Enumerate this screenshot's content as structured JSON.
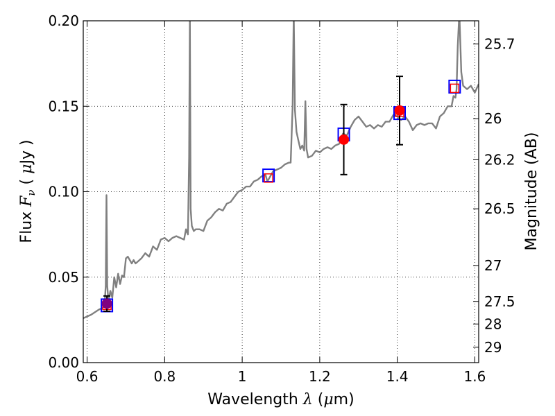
{
  "chart_data": {
    "type": "line",
    "title": "",
    "xlabel": "Wavelength",
    "xlabel_symbol": "λ",
    "xlabel_unit_open": "(",
    "xlabel_unit_mu": "μ",
    "xlabel_unit_rest": "m)",
    "ylabel": "Flux",
    "ylabel_symbol": "F",
    "ylabel_symbol_sub": "ν",
    "ylabel_unit_open": "(",
    "ylabel_unit_mu": "μ",
    "ylabel_unit_rest": "Jy )",
    "y2label": "Magnitude (AB)",
    "xlim": [
      0.59,
      1.61
    ],
    "ylim": [
      0.0,
      0.2
    ],
    "grid": true,
    "x_ticks": [
      0.6,
      0.8,
      1.0,
      1.2,
      1.4,
      1.6
    ],
    "x_tick_labels": [
      "0.6",
      "0.8",
      "1",
      "1.2",
      "1.4",
      "1.6"
    ],
    "y_ticks": [
      0.0,
      0.05,
      0.1,
      0.15,
      0.2
    ],
    "y_tick_labels": [
      "0.00",
      "0.05",
      "0.10",
      "0.15",
      "0.20"
    ],
    "y2_ticks": [
      {
        "label": "25.7",
        "flux": 0.1865
      },
      {
        "label": "26",
        "flux": 0.1427
      },
      {
        "label": "26.2",
        "flux": 0.1187
      },
      {
        "label": "26.5",
        "flux": 0.09
      },
      {
        "label": "27",
        "flux": 0.0568
      },
      {
        "label": "27.5",
        "flux": 0.0358
      },
      {
        "label": "28",
        "flux": 0.0226
      },
      {
        "label": "29",
        "flux": 0.009
      }
    ],
    "series": [
      {
        "style": "spectrum-line",
        "color": "#808080",
        "x": [
          0.59,
          0.61,
          0.63,
          0.64,
          0.645,
          0.648,
          0.65,
          0.652,
          0.655,
          0.66,
          0.665,
          0.67,
          0.675,
          0.68,
          0.685,
          0.69,
          0.695,
          0.7,
          0.705,
          0.71,
          0.715,
          0.72,
          0.725,
          0.73,
          0.74,
          0.75,
          0.76,
          0.77,
          0.78,
          0.79,
          0.8,
          0.81,
          0.82,
          0.83,
          0.84,
          0.85,
          0.855,
          0.86,
          0.863,
          0.865,
          0.867,
          0.87,
          0.875,
          0.88,
          0.89,
          0.9,
          0.91,
          0.92,
          0.93,
          0.94,
          0.95,
          0.96,
          0.97,
          0.98,
          0.99,
          1.0,
          1.01,
          1.02,
          1.03,
          1.04,
          1.05,
          1.06,
          1.065,
          1.07,
          1.08,
          1.09,
          1.1,
          1.11,
          1.12,
          1.125,
          1.13,
          1.133,
          1.136,
          1.14,
          1.145,
          1.15,
          1.155,
          1.16,
          1.163,
          1.166,
          1.17,
          1.18,
          1.19,
          1.2,
          1.21,
          1.22,
          1.23,
          1.24,
          1.25,
          1.26,
          1.27,
          1.28,
          1.29,
          1.3,
          1.31,
          1.32,
          1.33,
          1.34,
          1.35,
          1.36,
          1.37,
          1.38,
          1.39,
          1.4,
          1.41,
          1.42,
          1.43,
          1.44,
          1.45,
          1.46,
          1.47,
          1.48,
          1.49,
          1.5,
          1.51,
          1.52,
          1.53,
          1.54,
          1.545,
          1.55,
          1.553,
          1.556,
          1.56,
          1.565,
          1.57,
          1.58,
          1.59,
          1.6,
          1.61
        ],
        "y": [
          0.026,
          0.028,
          0.031,
          0.032,
          0.033,
          0.045,
          0.098,
          0.045,
          0.036,
          0.042,
          0.038,
          0.05,
          0.044,
          0.052,
          0.046,
          0.051,
          0.05,
          0.061,
          0.062,
          0.06,
          0.058,
          0.06,
          0.058,
          0.059,
          0.061,
          0.064,
          0.062,
          0.068,
          0.066,
          0.072,
          0.073,
          0.071,
          0.073,
          0.074,
          0.073,
          0.072,
          0.078,
          0.075,
          0.12,
          0.205,
          0.09,
          0.08,
          0.077,
          0.078,
          0.078,
          0.077,
          0.083,
          0.085,
          0.088,
          0.09,
          0.089,
          0.093,
          0.094,
          0.097,
          0.1,
          0.101,
          0.103,
          0.103,
          0.106,
          0.107,
          0.109,
          0.11,
          0.106,
          0.108,
          0.112,
          0.113,
          0.114,
          0.116,
          0.117,
          0.117,
          0.15,
          0.205,
          0.148,
          0.135,
          0.13,
          0.125,
          0.127,
          0.124,
          0.153,
          0.125,
          0.12,
          0.121,
          0.124,
          0.123,
          0.125,
          0.126,
          0.125,
          0.127,
          0.128,
          0.134,
          0.133,
          0.138,
          0.142,
          0.144,
          0.141,
          0.138,
          0.139,
          0.137,
          0.139,
          0.138,
          0.141,
          0.141,
          0.145,
          0.144,
          0.142,
          0.144,
          0.141,
          0.136,
          0.139,
          0.14,
          0.139,
          0.14,
          0.14,
          0.137,
          0.144,
          0.146,
          0.15,
          0.15,
          0.156,
          0.155,
          0.16,
          0.185,
          0.205,
          0.17,
          0.162,
          0.16,
          0.162,
          0.158,
          0.163
        ]
      },
      {
        "style": "open-square-blue",
        "color": "#0000ff",
        "x": [
          0.651,
          1.068,
          1.262,
          1.406,
          1.548
        ],
        "y": [
          0.0335,
          0.1095,
          0.1335,
          0.146,
          0.1615
        ]
      },
      {
        "style": "open-square-red",
        "color": "#ff0000",
        "x": [
          0.651,
          1.068,
          1.406,
          1.548
        ],
        "y": [
          0.0335,
          0.108,
          0.1465,
          0.1605
        ]
      },
      {
        "style": "filled-circle-errorbar",
        "color": "#ff0000",
        "x": [
          0.651,
          1.262,
          1.406
        ],
        "y": [
          0.0345,
          0.1305,
          0.1475
        ],
        "yerr": [
          0.0045,
          0.0205,
          0.02
        ]
      }
    ],
    "overlap_color": "#800080"
  }
}
